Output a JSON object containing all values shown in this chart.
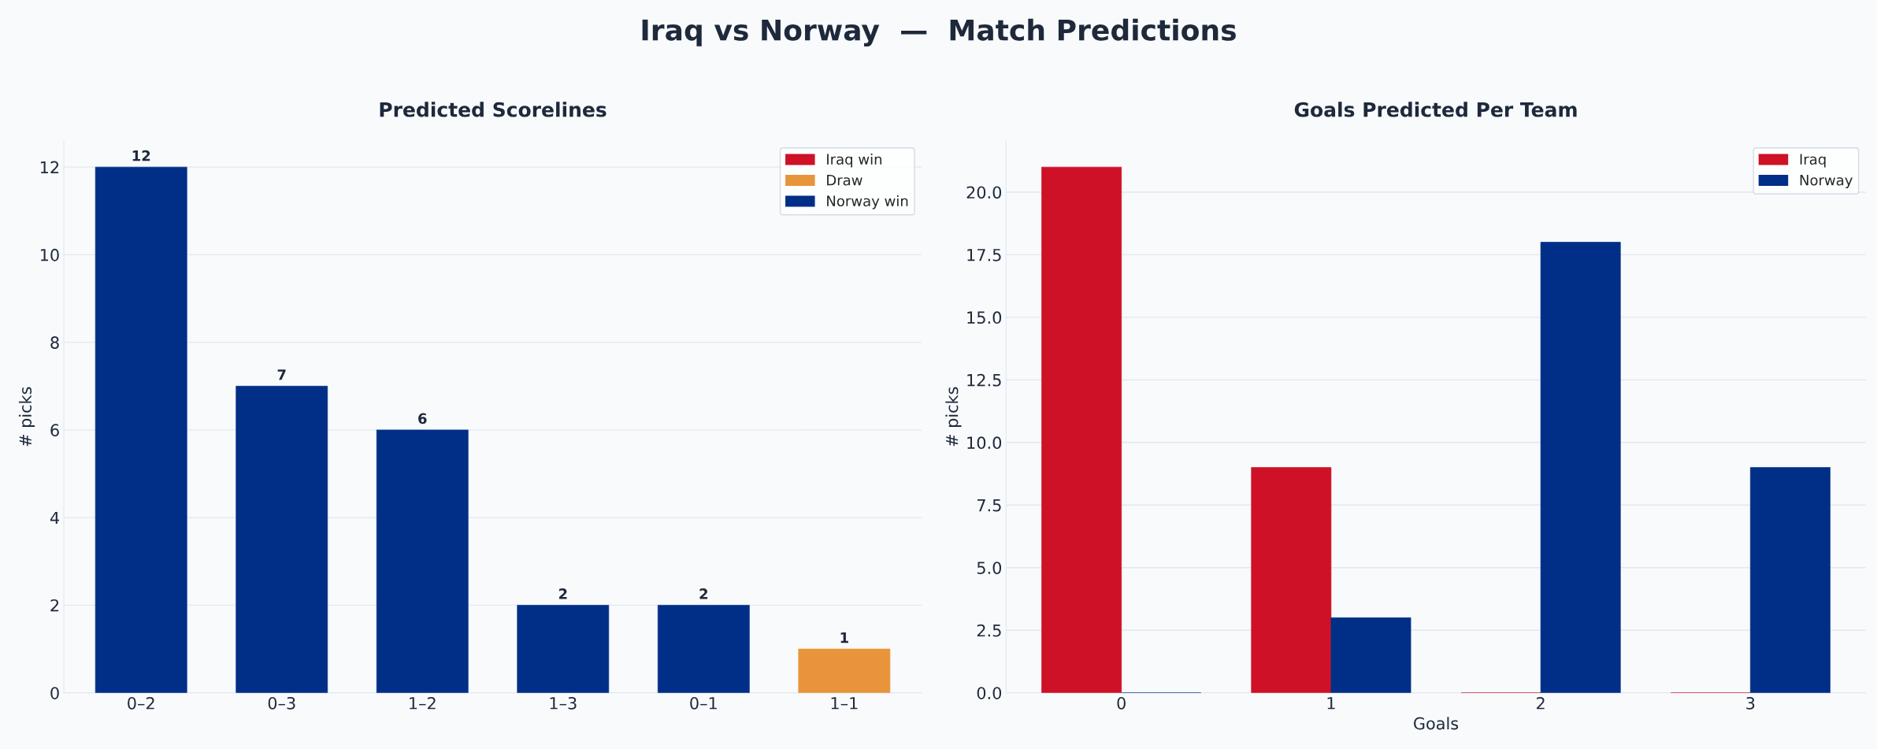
{
  "chart_data": [
    {
      "type": "bar",
      "annotations": [
        "Iraq vs Norway  —  Match Predictions"
      ],
      "title": "Predicted Scorelines",
      "ylabel": "# picks",
      "categories": [
        "0–2",
        "0–3",
        "1–2",
        "1–3",
        "0–1",
        "1–1"
      ],
      "stacked": true,
      "series": [
        {
          "name": "Iraq win",
          "color": "#ce1126",
          "values": [
            null,
            null,
            null,
            null,
            null,
            null
          ]
        },
        {
          "name": "Draw",
          "color": "#e8943a",
          "values": [
            null,
            null,
            null,
            null,
            null,
            1
          ]
        },
        {
          "name": "Norway win",
          "color": "#012f87",
          "values": [
            12,
            7,
            6,
            2,
            2,
            null
          ]
        }
      ],
      "ylim": [
        0,
        12.6
      ],
      "yticks": [
        0,
        2,
        4,
        6,
        8,
        10,
        12
      ],
      "grid": "y",
      "legend": "top right",
      "data_labels": true
    },
    {
      "type": "bar",
      "title": "Goals Predicted Per Team",
      "xlabel": "Goals",
      "ylabel": "# picks",
      "categories": [
        "0",
        "1",
        "2",
        "3"
      ],
      "series": [
        {
          "name": "Iraq",
          "color": "#ce1126",
          "values": [
            21,
            9,
            0,
            0
          ]
        },
        {
          "name": "Norway",
          "color": "#012f87",
          "values": [
            0,
            3,
            18,
            9
          ]
        }
      ],
      "ylim": [
        0,
        22.05
      ],
      "yticks": [
        {
          "value": 0,
          "label": "0.0"
        },
        {
          "value": 2.5,
          "label": "2.5"
        },
        {
          "value": 5,
          "label": "5.0"
        },
        {
          "value": 7.5,
          "label": "7.5"
        },
        {
          "value": 10,
          "label": "10.0"
        },
        {
          "value": 12.5,
          "label": "12.5"
        },
        {
          "value": 15,
          "label": "15.0"
        },
        {
          "value": 17.5,
          "label": "17.5"
        },
        {
          "value": 20,
          "label": "20.0"
        }
      ],
      "grid": "y",
      "legend": "top right"
    }
  ]
}
